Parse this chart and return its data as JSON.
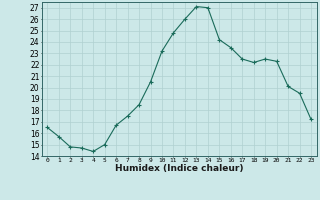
{
  "x": [
    0,
    1,
    2,
    3,
    4,
    5,
    6,
    7,
    8,
    9,
    10,
    11,
    12,
    13,
    14,
    15,
    16,
    17,
    18,
    19,
    20,
    21,
    22,
    23
  ],
  "y": [
    16.5,
    15.7,
    14.8,
    14.7,
    14.4,
    15.0,
    16.7,
    17.5,
    18.5,
    20.5,
    23.2,
    24.8,
    26.0,
    27.1,
    27.0,
    24.2,
    23.5,
    22.5,
    22.2,
    22.5,
    22.3,
    20.1,
    19.5,
    17.2
  ],
  "line_color": "#1a6b5a",
  "marker": "+",
  "marker_size": 3,
  "background_color": "#cce8e8",
  "grid_color": "#b0d0d0",
  "xlabel": "Humidex (Indice chaleur)",
  "xlim": [
    -0.5,
    23.5
  ],
  "ylim": [
    14,
    27.5
  ],
  "yticks": [
    14,
    15,
    16,
    17,
    18,
    19,
    20,
    21,
    22,
    23,
    24,
    25,
    26,
    27
  ],
  "xticks": [
    0,
    1,
    2,
    3,
    4,
    5,
    6,
    7,
    8,
    9,
    10,
    11,
    12,
    13,
    14,
    15,
    16,
    17,
    18,
    19,
    20,
    21,
    22,
    23
  ]
}
